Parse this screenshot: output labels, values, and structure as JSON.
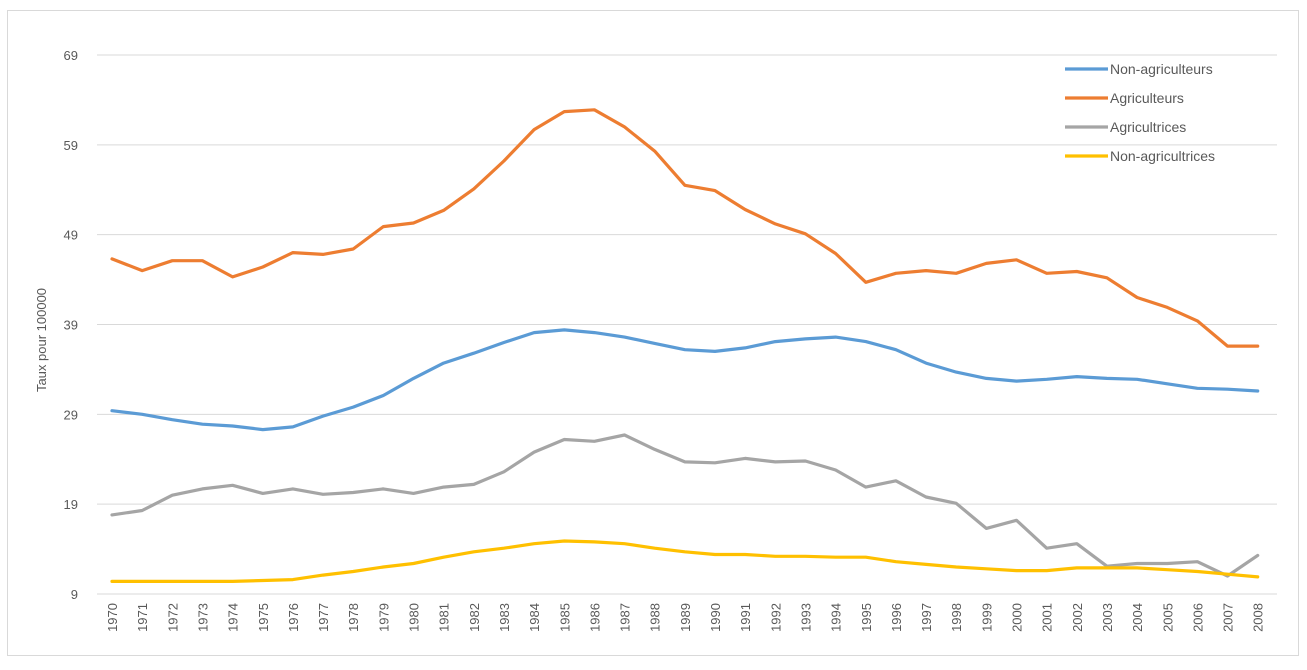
{
  "chart_data": {
    "type": "line",
    "title": "",
    "xlabel": "",
    "ylabel": "Taux pour 100000",
    "ylim": [
      9,
      69
    ],
    "yticks": [
      9,
      19,
      29,
      39,
      49,
      59,
      69
    ],
    "grid": true,
    "legend_position": "top-right",
    "x": [
      "1970",
      "1971",
      "1972",
      "1973",
      "1974",
      "1975",
      "1976",
      "1977",
      "1978",
      "1979",
      "1980",
      "1981",
      "1982",
      "1983",
      "1984",
      "1985",
      "1986",
      "1987",
      "1988",
      "1989",
      "1990",
      "1991",
      "1992",
      "1993",
      "1994",
      "1995",
      "1996",
      "1997",
      "1998",
      "1999",
      "2000",
      "2001",
      "2002",
      "2003",
      "2004",
      "2005",
      "2006",
      "2007",
      "2008"
    ],
    "series": [
      {
        "name": "Non-agriculteurs",
        "color": "#5B9BD5",
        "values": [
          29.4,
          29.0,
          28.4,
          27.9,
          27.7,
          27.3,
          27.6,
          28.8,
          29.8,
          31.1,
          33.0,
          34.7,
          35.8,
          37.0,
          38.1,
          38.4,
          38.1,
          37.6,
          36.9,
          36.2,
          36.0,
          36.4,
          37.1,
          37.4,
          37.6,
          37.1,
          36.2,
          34.7,
          33.7,
          33.0,
          32.7,
          32.9,
          33.2,
          33.0,
          32.9,
          32.4,
          31.9,
          31.8,
          31.6
        ]
      },
      {
        "name": "Agriculteurs",
        "color": "#ED7D31",
        "values": [
          46.3,
          45.0,
          46.1,
          46.1,
          44.3,
          45.4,
          47.0,
          46.8,
          47.4,
          49.9,
          50.3,
          51.7,
          54.1,
          57.2,
          60.7,
          62.7,
          62.9,
          61.0,
          58.3,
          54.5,
          53.9,
          51.8,
          50.2,
          49.1,
          46.9,
          43.7,
          44.7,
          45.0,
          44.7,
          45.8,
          46.2,
          44.7,
          44.9,
          44.2,
          42.0,
          40.9,
          39.4,
          36.6,
          36.6
        ]
      },
      {
        "name": "Agricultrices",
        "color": "#A5A5A5",
        "values": [
          17.8,
          18.3,
          20.0,
          20.7,
          21.1,
          20.2,
          20.7,
          20.1,
          20.3,
          20.7,
          20.2,
          20.9,
          21.2,
          22.6,
          24.8,
          26.2,
          26.0,
          26.7,
          25.1,
          23.7,
          23.6,
          24.1,
          23.7,
          23.8,
          22.8,
          20.9,
          21.6,
          19.8,
          19.1,
          16.3,
          17.2,
          14.1,
          14.6,
          12.1,
          12.4,
          12.4,
          12.6,
          11.0,
          13.3
        ]
      },
      {
        "name": "Non-agricultrices",
        "color": "#FFC000",
        "values": [
          10.4,
          10.4,
          10.4,
          10.4,
          10.4,
          10.5,
          10.6,
          11.1,
          11.5,
          12.0,
          12.4,
          13.1,
          13.7,
          14.1,
          14.6,
          14.9,
          14.8,
          14.6,
          14.1,
          13.7,
          13.4,
          13.4,
          13.2,
          13.2,
          13.1,
          13.1,
          12.6,
          12.3,
          12.0,
          11.8,
          11.6,
          11.6,
          11.9,
          11.9,
          11.9,
          11.7,
          11.5,
          11.2,
          10.9
        ]
      }
    ]
  }
}
